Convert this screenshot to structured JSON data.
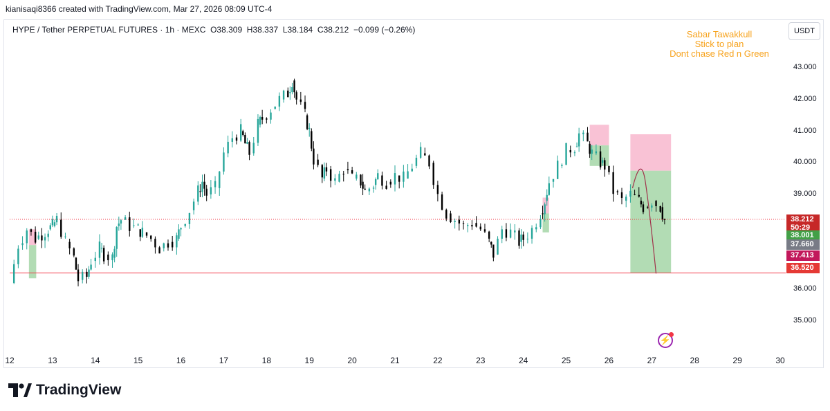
{
  "header": {
    "attribution": "kianisaqi8366 created with TradingView.com, Mar 27, 2026 08:09 UTC-4"
  },
  "legend": {
    "symbol": "HYPE / Tether PERPETUAL FUTURES · 1h · MEXC",
    "o": "O38.309",
    "h": "H38.337",
    "l": "L38.184",
    "c": "C38.212",
    "change": "−0.099 (−0.26%)"
  },
  "currency_button": "USDT",
  "note_lines": [
    "Sabar Tawakkull",
    "Stick to plan",
    "Dont chase Red n Green"
  ],
  "brand": {
    "name": "TradingView",
    "logo_text": "TV"
  },
  "colors": {
    "up": "#26a69a",
    "down": "#000000",
    "note": "#f7a21b",
    "stop_zone": "#f8bbd0",
    "target_zone": "#a5d6a7",
    "support_line": "#f23645"
  },
  "price_tags": [
    {
      "value": "38.212",
      "color": "#c62828",
      "price": 38.212
    },
    {
      "value": "50:29",
      "color": "#c62828",
      "price": 37.95
    },
    {
      "value": "38.001",
      "color": "#43a047",
      "price": 37.72
    },
    {
      "value": "37.660",
      "color": "#787b86",
      "price": 37.42
    },
    {
      "value": "37.413",
      "color": "#c2185b",
      "price": 37.08
    },
    {
      "value": "36.520",
      "color": "#e53935",
      "price": 36.68
    }
  ],
  "chart_data": {
    "type": "candlestick",
    "title": "HYPE / Tether PERPETUAL FUTURES · 1h · MEXC",
    "xlabel": "",
    "ylabel": "",
    "x_ticks": [
      "12",
      "13",
      "14",
      "15",
      "16",
      "17",
      "18",
      "19",
      "20",
      "21",
      "22",
      "23",
      "24",
      "25",
      "26",
      "27",
      "28",
      "29",
      "30"
    ],
    "x_range_days": [
      12,
      30
    ],
    "y_ticks": [
      35.0,
      36.0,
      37.0,
      38.0,
      39.0,
      40.0,
      41.0,
      42.0,
      43.0
    ],
    "y_tick_labels": [
      "35.000",
      "36.000",
      "37.000",
      "38.000",
      "39.000",
      "40.000",
      "41.000",
      "42.000",
      "43.000"
    ],
    "ylim": [
      34.5,
      43.9
    ],
    "grid": false,
    "current_price": 38.212,
    "support_price": 36.52,
    "series": [
      {
        "ohlc_by_day": [
          [
            12.0,
            36.2
          ],
          [
            12.2,
            37.4
          ],
          [
            12.4,
            37.9
          ],
          [
            12.6,
            37.6
          ],
          [
            12.9,
            37.9
          ],
          [
            13.0,
            38.0
          ],
          [
            13.1,
            38.2
          ],
          [
            13.3,
            37.5
          ],
          [
            13.5,
            37.0
          ],
          [
            13.6,
            36.3
          ],
          [
            13.8,
            36.4
          ],
          [
            13.9,
            36.9
          ],
          [
            14.1,
            37.3
          ],
          [
            14.2,
            37.1
          ],
          [
            14.4,
            37.0
          ],
          [
            14.5,
            38.0
          ],
          [
            14.6,
            38.2
          ],
          [
            14.8,
            38.0
          ],
          [
            15.0,
            37.9
          ],
          [
            15.1,
            37.8
          ],
          [
            15.3,
            37.6
          ],
          [
            15.5,
            37.3
          ],
          [
            15.7,
            37.5
          ],
          [
            15.9,
            37.6
          ],
          [
            16.0,
            38.0
          ],
          [
            16.2,
            38.5
          ],
          [
            16.4,
            39.1
          ],
          [
            16.5,
            39.4
          ],
          [
            16.6,
            39.0
          ],
          [
            16.8,
            39.2
          ],
          [
            17.0,
            40.3
          ],
          [
            17.2,
            40.8
          ],
          [
            17.4,
            41.0
          ],
          [
            17.5,
            40.6
          ],
          [
            17.6,
            40.3
          ],
          [
            17.8,
            41.2
          ],
          [
            17.9,
            41.4
          ],
          [
            18.1,
            41.7
          ],
          [
            18.3,
            42.0
          ],
          [
            18.5,
            42.2
          ],
          [
            18.6,
            42.6
          ],
          [
            18.7,
            42.0
          ],
          [
            18.9,
            41.5
          ],
          [
            19.0,
            41.0
          ],
          [
            19.1,
            40.1
          ],
          [
            19.3,
            39.5
          ],
          [
            19.4,
            39.8
          ],
          [
            19.6,
            39.4
          ],
          [
            19.8,
            39.8
          ],
          [
            20.0,
            39.5
          ],
          [
            20.2,
            39.4
          ],
          [
            20.3,
            39.1
          ],
          [
            20.5,
            39.3
          ],
          [
            20.6,
            39.6
          ],
          [
            20.8,
            39.4
          ],
          [
            21.0,
            39.6
          ],
          [
            21.2,
            39.5
          ],
          [
            21.4,
            39.9
          ],
          [
            21.6,
            40.3
          ],
          [
            21.8,
            40.0
          ],
          [
            22.0,
            39.0
          ],
          [
            22.2,
            38.4
          ],
          [
            22.4,
            38.2
          ],
          [
            22.6,
            38.0
          ],
          [
            22.8,
            38.1
          ],
          [
            23.0,
            37.9
          ],
          [
            23.2,
            37.5
          ],
          [
            23.3,
            37.1
          ],
          [
            23.5,
            37.9
          ],
          [
            23.7,
            37.8
          ],
          [
            23.9,
            37.5
          ],
          [
            24.0,
            37.6
          ],
          [
            24.2,
            37.9
          ],
          [
            24.4,
            38.4
          ],
          [
            24.5,
            38.8
          ],
          [
            24.6,
            39.4
          ],
          [
            24.8,
            39.9
          ],
          [
            25.0,
            40.4
          ],
          [
            25.2,
            40.5
          ],
          [
            25.3,
            40.9
          ],
          [
            25.5,
            40.6
          ],
          [
            25.6,
            40.3
          ],
          [
            25.8,
            40.0
          ],
          [
            25.9,
            39.9
          ],
          [
            26.1,
            39.1
          ],
          [
            26.3,
            38.8
          ],
          [
            26.5,
            39.0
          ],
          [
            26.7,
            38.8
          ],
          [
            26.8,
            38.6
          ],
          [
            27.0,
            38.8
          ],
          [
            27.2,
            38.6
          ],
          [
            27.3,
            38.2
          ]
        ]
      }
    ],
    "zones": [
      {
        "kind": "short-stop",
        "from_day": 25.55,
        "to_day": 26.0,
        "low": 40.55,
        "high": 41.2
      },
      {
        "kind": "short-target",
        "from_day": 25.55,
        "to_day": 26.0,
        "low": 39.9,
        "high": 40.55
      },
      {
        "kind": "long-stop",
        "from_day": 26.5,
        "to_day": 27.45,
        "low": 39.75,
        "high": 40.9
      },
      {
        "kind": "long-target",
        "from_day": 26.5,
        "to_day": 27.45,
        "low": 36.52,
        "high": 39.75
      },
      {
        "kind": "small-stop",
        "from_day": 12.45,
        "to_day": 12.62,
        "low": 37.4,
        "high": 37.9
      },
      {
        "kind": "small-target",
        "from_day": 12.45,
        "to_day": 12.62,
        "low": 36.35,
        "high": 37.4
      },
      {
        "kind": "small-stop",
        "from_day": 24.45,
        "to_day": 24.6,
        "low": 38.4,
        "high": 38.9
      },
      {
        "kind": "small-target",
        "from_day": 24.45,
        "to_day": 24.6,
        "low": 37.8,
        "high": 38.4
      }
    ]
  }
}
